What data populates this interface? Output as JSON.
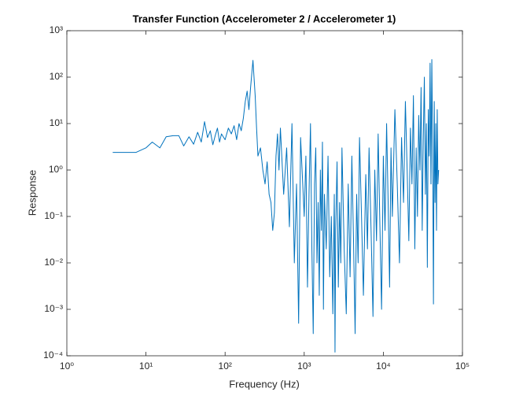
{
  "chart_data": {
    "type": "line",
    "title": "Transfer Function (Accelerometer 2 / Accelerometer 1)",
    "x_label": "Frequency (Hz)",
    "y_label": "Response",
    "xscale": "log",
    "yscale": "log",
    "grid": false,
    "color": "#0072bd",
    "xlim": [
      1,
      100000
    ],
    "ylim": [
      0.0001,
      1000
    ],
    "xticks": [
      {
        "value": 1,
        "label": "10⁰"
      },
      {
        "value": 10,
        "label": "10¹"
      },
      {
        "value": 100,
        "label": "10²"
      },
      {
        "value": 1000,
        "label": "10³"
      },
      {
        "value": 10000,
        "label": "10⁴"
      },
      {
        "value": 100000,
        "label": "10⁵"
      }
    ],
    "yticks": [
      {
        "value": 0.0001,
        "label": "10⁻⁴"
      },
      {
        "value": 0.001,
        "label": "10⁻³"
      },
      {
        "value": 0.01,
        "label": "10⁻²"
      },
      {
        "value": 0.1,
        "label": "10⁻¹"
      },
      {
        "value": 1,
        "label": "10⁰"
      },
      {
        "value": 10,
        "label": "10¹"
      },
      {
        "value": 100,
        "label": "10²"
      },
      {
        "value": 1000,
        "label": "10³"
      }
    ],
    "x": [
      3.8,
      7.5,
      10,
      12,
      15,
      18,
      22,
      26,
      30,
      35,
      40,
      45,
      50,
      55,
      60,
      65,
      70,
      75,
      80,
      85,
      90,
      100,
      110,
      120,
      130,
      140,
      150,
      160,
      170,
      180,
      190,
      200,
      210,
      225,
      240,
      250,
      260,
      280,
      300,
      320,
      340,
      360,
      380,
      400,
      420,
      440,
      460,
      480,
      500,
      550,
      600,
      650,
      700,
      750,
      800,
      850,
      900,
      1000,
      1050,
      1100,
      1150,
      1200,
      1250,
      1300,
      1350,
      1400,
      1450,
      1500,
      1550,
      1600,
      1650,
      1700,
      1750,
      1800,
      1900,
      2000,
      2100,
      2200,
      2300,
      2400,
      2450,
      2500,
      2600,
      2700,
      2800,
      2900,
      3000,
      3200,
      3400,
      3600,
      3800,
      4000,
      4200,
      4400,
      4600,
      4800,
      5000,
      5300,
      5600,
      6000,
      6300,
      6600,
      7000,
      7400,
      7800,
      8200,
      8600,
      9000,
      9500,
      10000,
      10500,
      11000,
      11500,
      12000,
      12500,
      13000,
      14000,
      15000,
      16000,
      17000,
      18000,
      19000,
      20000,
      21000,
      22000,
      23000,
      24000,
      25000,
      26000,
      27000,
      28000,
      29000,
      30000,
      31000,
      32000,
      33000,
      34000,
      35000,
      36000,
      37000,
      38000,
      39000,
      40000,
      41000,
      42000,
      43000,
      44000,
      45000,
      46000,
      47000,
      48000,
      49000,
      50000
    ],
    "values": [
      2.4,
      2.4,
      3,
      4,
      3,
      5.2,
      5.5,
      5.5,
      3.3,
      5.2,
      3.6,
      6.5,
      4,
      11,
      5,
      7,
      3.5,
      5.5,
      8,
      4,
      6,
      4.5,
      8,
      6,
      9,
      4.5,
      10,
      7,
      13,
      30,
      50,
      20,
      60,
      230,
      40,
      8,
      2,
      3,
      1,
      0.5,
      1.5,
      0.3,
      0.2,
      0.05,
      0.12,
      2,
      6,
      1,
      8,
      0.3,
      3,
      0.06,
      10,
      0.01,
      0.5,
      0.0005,
      5,
      0.1,
      2,
      0.003,
      0.3,
      10,
      0.02,
      0.0003,
      0.5,
      3,
      0.01,
      0.2,
      0.002,
      1,
      0.05,
      4,
      0.001,
      0.3,
      0.02,
      2,
      0.005,
      0.1,
      0.0008,
      0.3,
      0.00012,
      0.05,
      1.5,
      0.003,
      0.2,
      0.01,
      3,
      0.02,
      0.0008,
      0.5,
      0.005,
      2,
      0.03,
      0.0003,
      0.3,
      0.01,
      5,
      0.1,
      0.002,
      0.8,
      0.02,
      3,
      0.05,
      0.0007,
      1,
      0.03,
      6,
      0.1,
      0.001,
      2,
      0.05,
      10,
      0.2,
      0.003,
      3,
      0.1,
      20,
      0.5,
      0.01,
      5,
      0.2,
      30,
      1,
      0.03,
      8,
      0.5,
      40,
      0.02,
      3,
      0.1,
      15,
      1,
      60,
      0.05,
      5,
      100,
      0.3,
      10,
      0.008,
      20,
      2,
      200,
      0.5,
      240,
      3,
      0.0013,
      30,
      0.2,
      10,
      0.05,
      20,
      0.5,
      1
    ]
  }
}
